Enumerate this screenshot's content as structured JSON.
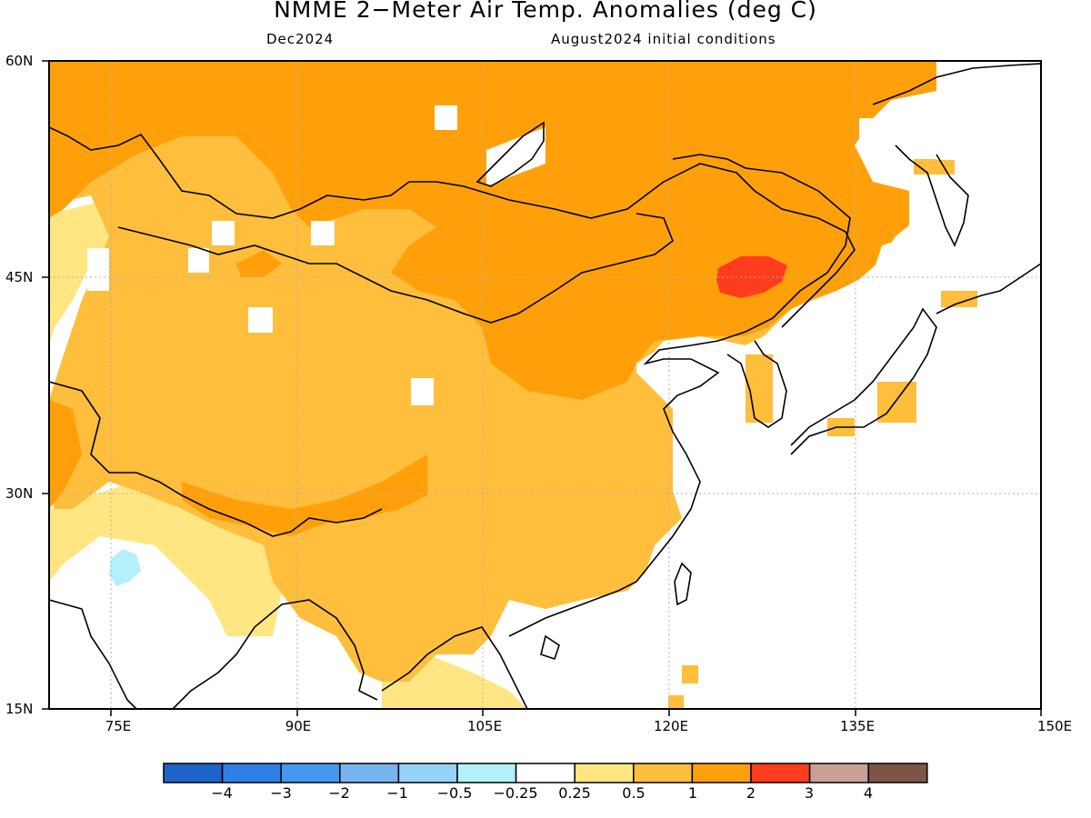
{
  "title": "NMME 2−Meter Air Temp. Anomalies (deg C)",
  "valid_month": "Dec2024",
  "initial_conditions": "August2024 initial conditions",
  "lat_labels": [
    "60N",
    "45N",
    "30N",
    "15N"
  ],
  "lon_labels": [
    "75E",
    "90E",
    "105E",
    "120E",
    "135E",
    "150E"
  ],
  "map_extent": {
    "lon": [
      70,
      150
    ],
    "lat": [
      15,
      60
    ]
  },
  "colorbar": {
    "labels": [
      "−4",
      "−3",
      "−2",
      "−1",
      "−0.5",
      "−0.25",
      "0.25",
      "0.5",
      "1",
      "2",
      "3",
      "4"
    ],
    "colors": [
      "#1e64c8",
      "#2f80e6",
      "#4697f0",
      "#78b4f0",
      "#96d2fa",
      "#b4f0fa",
      "#ffffff",
      "#ffe682",
      "#ffbe3c",
      "#ffa00a",
      "#ff3c1e",
      "#c8a096",
      "#7d5546"
    ]
  },
  "colors": {
    "land_outline": "#000000",
    "grid": "#b0b0b0",
    "anomaly_0_25_to_0_5": "#ffe682",
    "anomaly_0_5_to_1": "#ffbe3c",
    "anomaly_1_to_2": "#ffa00a",
    "anomaly_2_to_3": "#ff3c1e",
    "anomaly_neg_0_25_to_neg_0_5": "#b4f0fa"
  }
}
